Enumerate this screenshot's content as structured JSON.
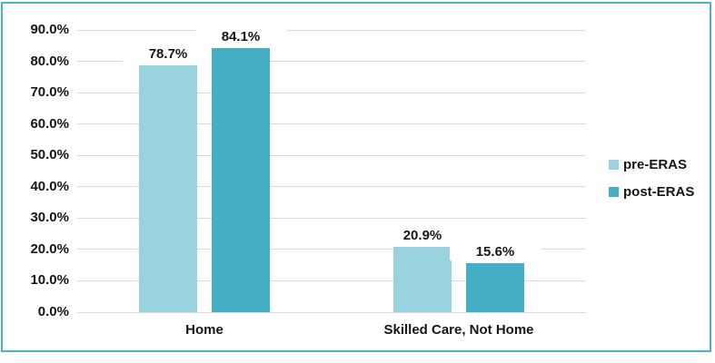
{
  "chart_data": {
    "type": "bar",
    "title": "",
    "xlabel": "",
    "ylabel": "",
    "categories": [
      "Home",
      "Skilled Care, Not Home"
    ],
    "series": [
      {
        "name": "pre-ERAS",
        "color": "#99D3E0",
        "values": [
          78.7,
          20.9
        ],
        "labels": [
          "78.7%",
          "20.9%"
        ]
      },
      {
        "name": "post-ERAS",
        "color": "#44AFC4",
        "values": [
          84.1,
          15.6
        ],
        "labels": [
          "84.1%",
          "15.6%"
        ]
      }
    ],
    "ylim": [
      0,
      90
    ],
    "y_ticks": [
      {
        "value": 0,
        "label": "0.0%"
      },
      {
        "value": 10,
        "label": "10.0%"
      },
      {
        "value": 20,
        "label": "20.0%"
      },
      {
        "value": 30,
        "label": "30.0%"
      },
      {
        "value": 40,
        "label": "40.0%"
      },
      {
        "value": 50,
        "label": "50.0%"
      },
      {
        "value": 60,
        "label": "60.0%"
      },
      {
        "value": 70,
        "label": "70.0%"
      },
      {
        "value": 80,
        "label": "80.0%"
      },
      {
        "value": 90,
        "label": "90.0%"
      }
    ],
    "grid": true,
    "legend_position": "right"
  },
  "colors": {
    "frame_border": "#4DB2C4",
    "gridline": "#D9D9D9",
    "text": "#161616",
    "background": "#ffffff"
  }
}
